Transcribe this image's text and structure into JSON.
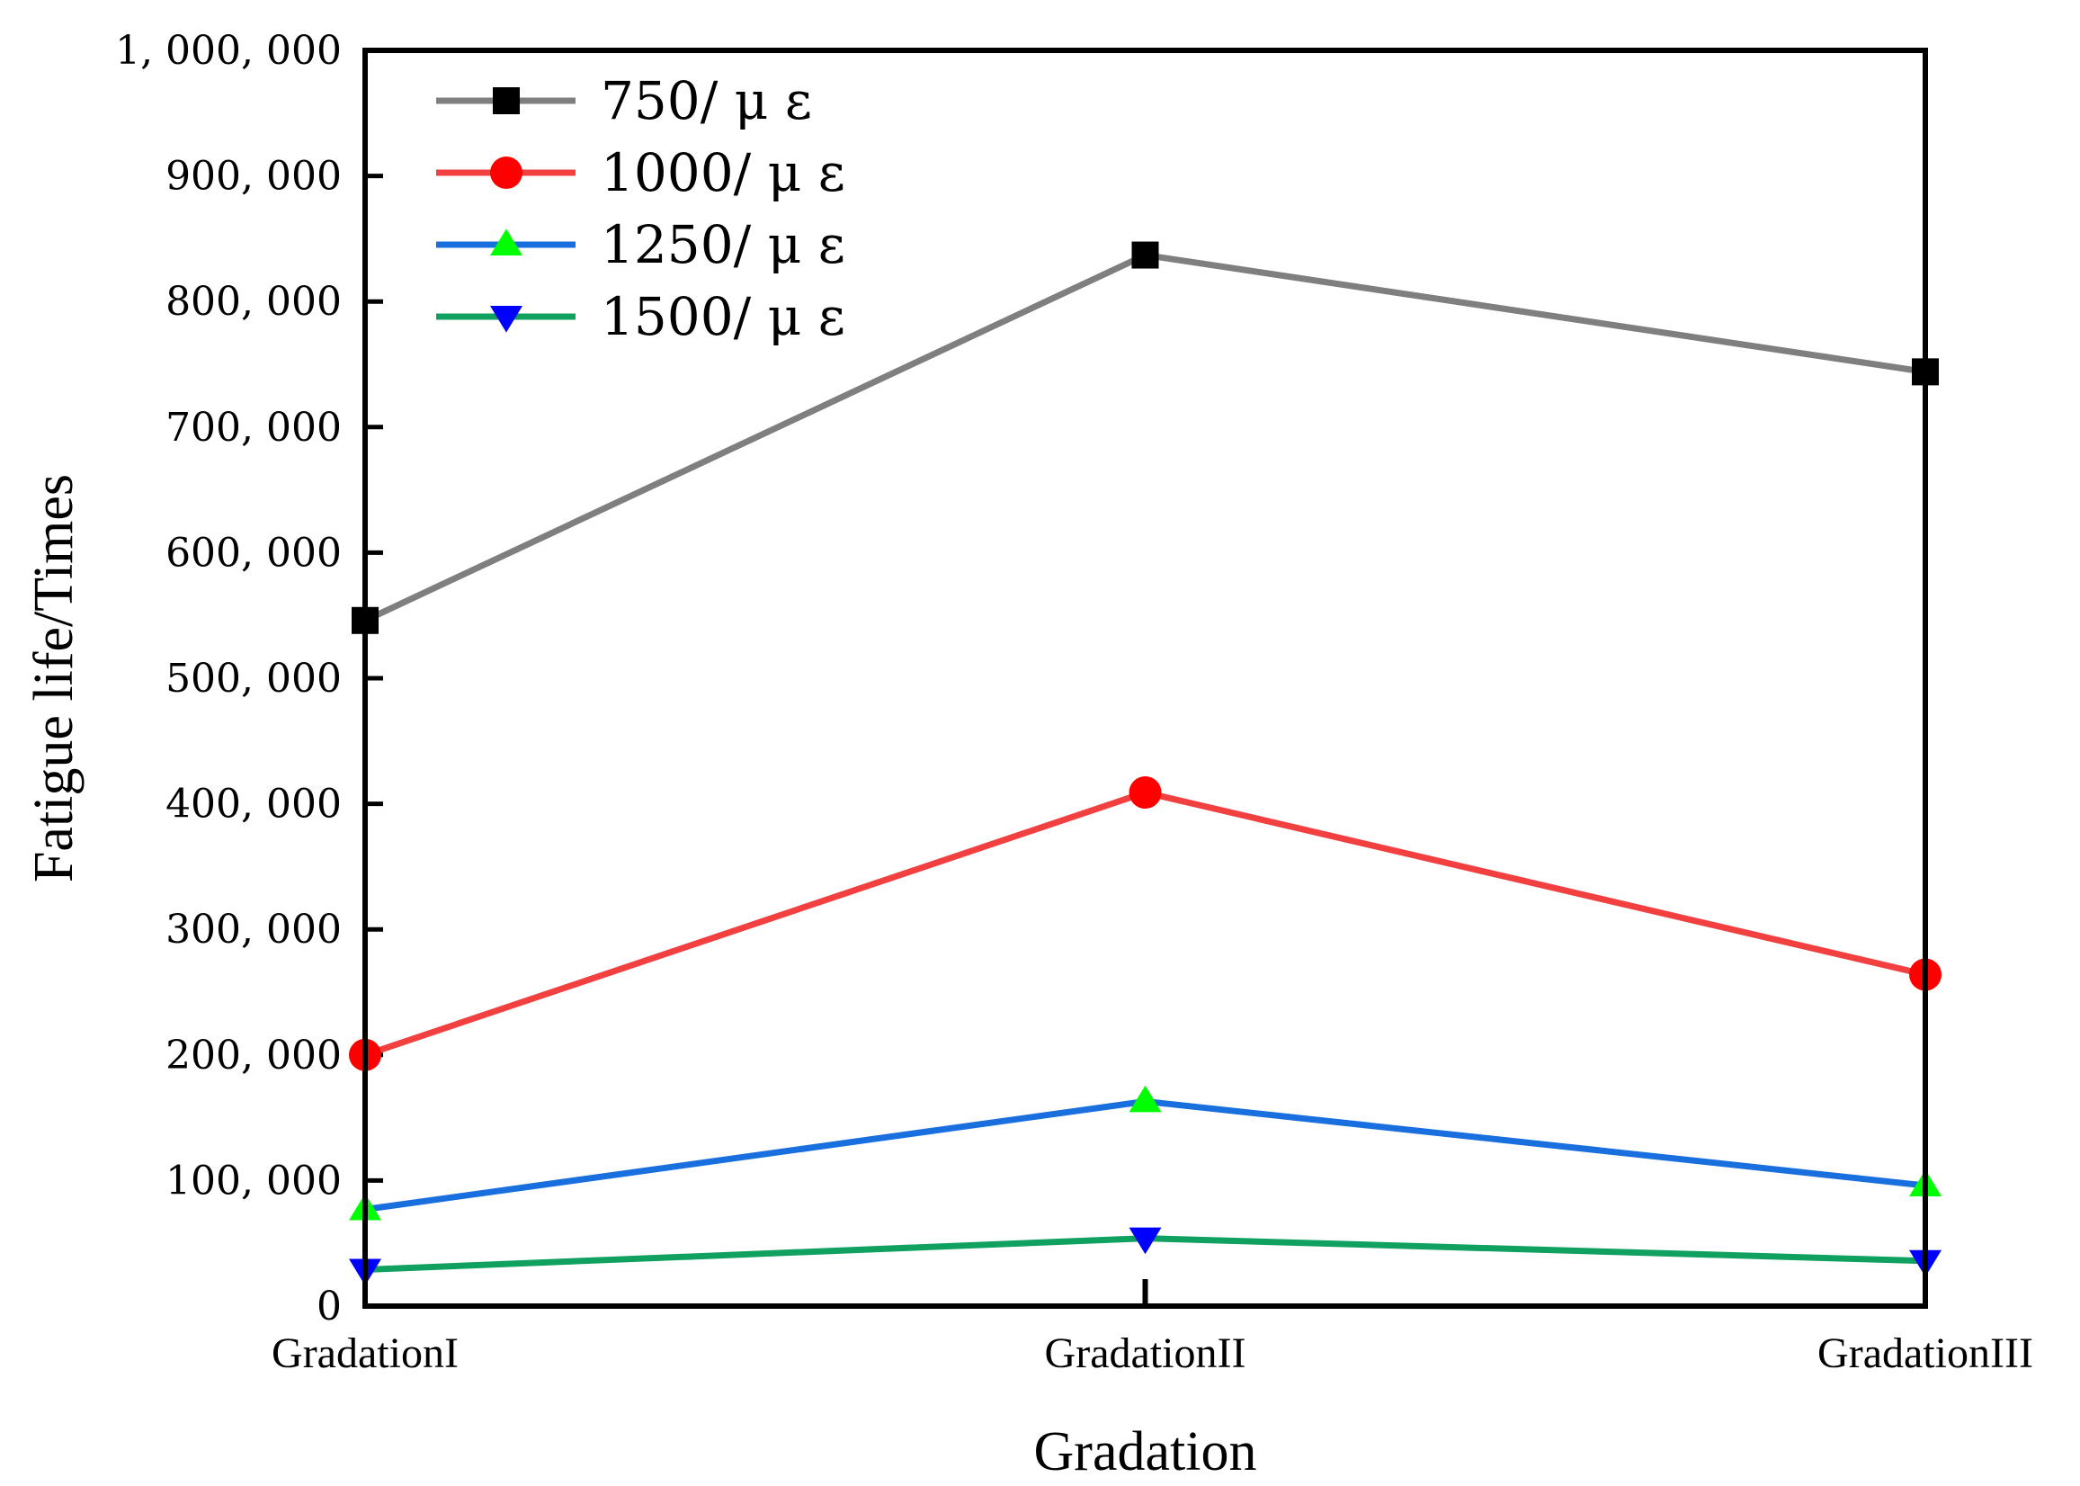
{
  "chart_data": {
    "type": "line",
    "title": "",
    "xlabel": "Gradation",
    "ylabel": "Fatigue life/Times",
    "categories": [
      "GradationI",
      "GradationII",
      "GradationIII"
    ],
    "ylim": [
      0,
      1000000
    ],
    "yticks": [
      0,
      100000,
      200000,
      300000,
      400000,
      500000,
      600000,
      700000,
      800000,
      900000,
      1000000
    ],
    "ytick_labels": [
      "0",
      "100, 000",
      "200, 000",
      "300, 000",
      "400, 000",
      "500, 000",
      "600, 000",
      "700, 000",
      "800, 000",
      "900, 000",
      "1, 000, 000"
    ],
    "grid": false,
    "legend_position": "top-left",
    "series": [
      {
        "name": "750/ μ  ε",
        "values": [
          546000,
          837000,
          744000
        ],
        "line_color": "#7f7f7f",
        "marker": "square",
        "marker_color": "#000000"
      },
      {
        "name": "1000/ μ  ε",
        "values": [
          200000,
          409000,
          264000
        ],
        "line_color": "#f24040",
        "marker": "circle",
        "marker_color": "#ff0000"
      },
      {
        "name": "1250/ μ  ε",
        "values": [
          77000,
          163000,
          96000
        ],
        "line_color": "#1a6fdf",
        "marker": "triangle-up",
        "marker_color": "#00ff00"
      },
      {
        "name": "1500/ μ  ε",
        "values": [
          29000,
          54000,
          36000
        ],
        "line_color": "#10a060",
        "marker": "triangle-down",
        "marker_color": "#0000ff"
      }
    ]
  }
}
